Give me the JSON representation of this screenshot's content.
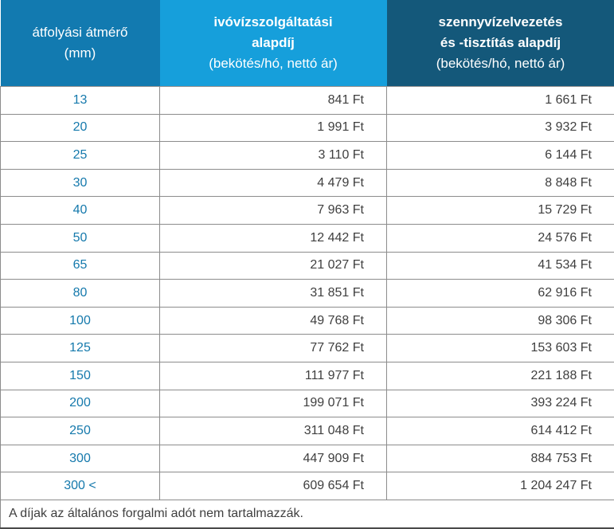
{
  "table": {
    "header": {
      "diameter": {
        "line1": "átfolyási átmérő",
        "line2": "(mm)"
      },
      "water": {
        "line1": "ivóvízszolgáltatási",
        "line2": "alapdíj",
        "line3": "(bekötés/hó, nettó ár)"
      },
      "sewage": {
        "line1": "szennyvízelvezetés",
        "line2": "és -tisztítás alapdíj",
        "line3": "(bekötés/hó, nettó ár)"
      }
    },
    "rows": [
      {
        "diameter": "13",
        "water_fee": "841 Ft",
        "sewage_fee": "1 661 Ft"
      },
      {
        "diameter": "20",
        "water_fee": "1 991 Ft",
        "sewage_fee": "3 932 Ft"
      },
      {
        "diameter": "25",
        "water_fee": "3 110 Ft",
        "sewage_fee": "6 144 Ft"
      },
      {
        "diameter": "30",
        "water_fee": "4 479 Ft",
        "sewage_fee": "8 848 Ft"
      },
      {
        "diameter": "40",
        "water_fee": "7 963 Ft",
        "sewage_fee": "15 729 Ft"
      },
      {
        "diameter": "50",
        "water_fee": "12 442 Ft",
        "sewage_fee": "24 576 Ft"
      },
      {
        "diameter": "65",
        "water_fee": "21 027 Ft",
        "sewage_fee": "41 534 Ft"
      },
      {
        "diameter": "80",
        "water_fee": "31 851 Ft",
        "sewage_fee": "62 916 Ft"
      },
      {
        "diameter": "100",
        "water_fee": "49 768 Ft",
        "sewage_fee": "98 306 Ft"
      },
      {
        "diameter": "125",
        "water_fee": "77 762 Ft",
        "sewage_fee": "153 603 Ft"
      },
      {
        "diameter": "150",
        "water_fee": "111 977 Ft",
        "sewage_fee": "221 188 Ft"
      },
      {
        "diameter": "200",
        "water_fee": "199 071 Ft",
        "sewage_fee": "393 224 Ft"
      },
      {
        "diameter": "250",
        "water_fee": "311 048 Ft",
        "sewage_fee": "614 412 Ft"
      },
      {
        "diameter": "300",
        "water_fee": "447 909 Ft",
        "sewage_fee": "884 753 Ft"
      },
      {
        "diameter": "300 <",
        "water_fee": "609 654 Ft",
        "sewage_fee": "1 204 247 Ft"
      }
    ],
    "footnote": "A díjak az általános forgalmi adót nem tartalmazzák."
  },
  "colors": {
    "header_col1_bg": "#127AB0",
    "header_col2_bg": "#169FDB",
    "header_col3_bg": "#14587A",
    "diameter_text": "#1579AC",
    "value_text": "#3F3F3F",
    "border_color": "#8C8C8C"
  }
}
